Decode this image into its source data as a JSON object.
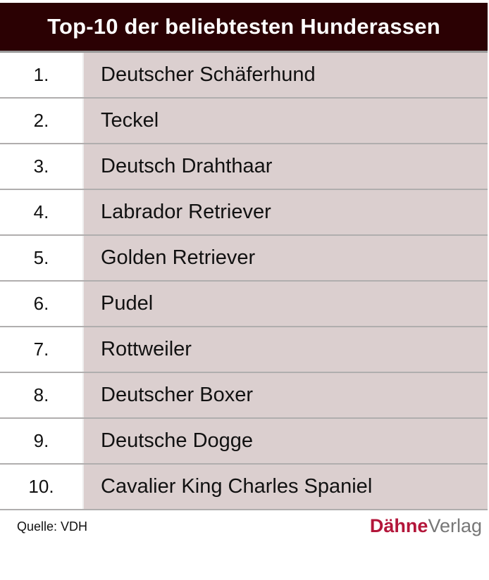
{
  "chart_data": {
    "type": "table",
    "title": "Top-10 der beliebtesten Hunderassen",
    "rows": [
      {
        "rank": "1.",
        "breed": "Deutscher Schäferhund"
      },
      {
        "rank": "2.",
        "breed": "Teckel"
      },
      {
        "rank": "3.",
        "breed": "Deutsch Drahthaar"
      },
      {
        "rank": "4.",
        "breed": "Labrador Retriever"
      },
      {
        "rank": "5.",
        "breed": "Golden Retriever"
      },
      {
        "rank": "6.",
        "breed": "Pudel"
      },
      {
        "rank": "7.",
        "breed": "Rottweiler"
      },
      {
        "rank": "8.",
        "breed": "Deutscher Boxer"
      },
      {
        "rank": "9.",
        "breed": "Deutsche Dogge"
      },
      {
        "rank": "10.",
        "breed": "Cavalier King Charles Spaniel"
      }
    ],
    "source": "Quelle: VDH",
    "colors": {
      "header": "#2b0103",
      "name_cell": "#dbcfcf",
      "logo_accent": "#b3163a"
    }
  },
  "logo": {
    "part1": "Dähne",
    "part2": "Verlag"
  }
}
